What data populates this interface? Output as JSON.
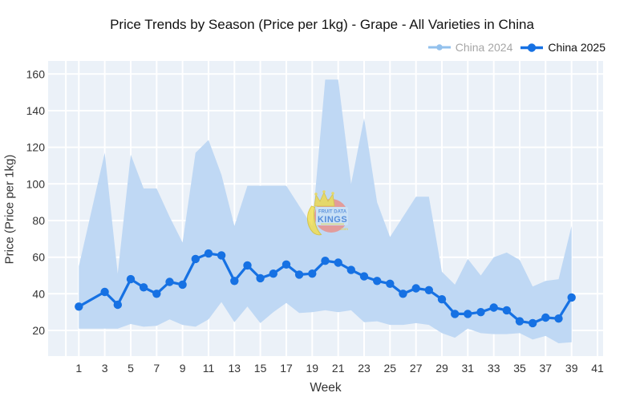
{
  "chart_data": {
    "type": "line",
    "title": "Price Trends by Season (Price per 1kg) - Grape - All Varieties in China",
    "xlabel": "Week",
    "ylabel": "Price (Price per 1kg)",
    "x_ticks": [
      1,
      3,
      5,
      7,
      9,
      11,
      13,
      15,
      17,
      19,
      21,
      23,
      25,
      27,
      29,
      31,
      33,
      35,
      37,
      39,
      41
    ],
    "y_ticks": [
      20,
      40,
      60,
      80,
      100,
      120,
      140,
      160
    ],
    "weeks": [
      1,
      2,
      3,
      4,
      5,
      6,
      7,
      8,
      9,
      10,
      11,
      12,
      13,
      14,
      15,
      16,
      17,
      18,
      19,
      20,
      21,
      22,
      23,
      24,
      25,
      26,
      27,
      28,
      29,
      30,
      31,
      32,
      33,
      34,
      35,
      36,
      37,
      38,
      39
    ],
    "series": [
      {
        "name": "China 2024",
        "type": "band",
        "fill_color": "#bfd8f4",
        "legend_color": "#93c1ed",
        "upper": [
          55,
          null,
          117,
          51,
          116,
          97.5,
          97.5,
          82,
          68,
          117,
          124,
          105,
          77,
          99,
          99,
          99,
          99,
          88,
          77,
          157,
          157,
          100,
          136,
          90,
          71,
          82,
          93,
          93,
          52,
          45,
          59,
          50,
          60,
          62.5,
          58.5,
          44,
          47,
          48,
          77
        ],
        "lower": [
          21,
          null,
          21,
          21,
          23.5,
          22,
          22.5,
          26,
          23,
          22,
          26,
          35.5,
          24.5,
          33,
          24,
          30,
          35,
          29.5,
          30,
          31,
          30,
          31,
          24.5,
          25,
          23,
          23,
          24,
          23,
          18.5,
          16,
          21,
          18.5,
          18,
          18,
          18.5,
          15,
          17,
          13,
          13.5
        ]
      },
      {
        "name": "China 2025",
        "type": "line",
        "color": "#1671e3",
        "values": [
          33,
          null,
          41,
          34,
          48,
          43.5,
          40,
          46.5,
          45,
          59,
          62,
          61,
          47,
          55.5,
          48.5,
          51,
          56,
          50.5,
          51,
          58,
          57,
          53,
          49.5,
          47,
          45.5,
          40,
          43,
          42,
          37,
          29,
          29,
          30,
          32.5,
          31,
          25,
          24,
          27,
          26.5,
          38
        ]
      }
    ],
    "colors": {
      "plot_bg": "#ebf1f8",
      "grid": "#ffffff",
      "tick_label": "#333333"
    },
    "xlim": [
      -1.4,
      43.3
    ],
    "ylim": [
      6,
      167
    ],
    "grid": true,
    "legend_position": "top-right"
  },
  "watermark": {
    "line1": "FRUIT DATA",
    "line2": "KINGS",
    "line3": ".com"
  }
}
